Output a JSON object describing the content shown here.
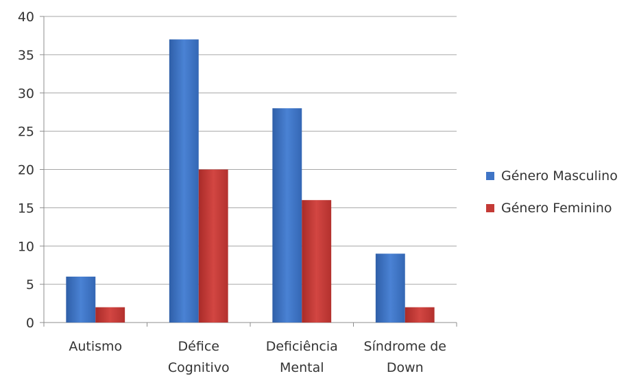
{
  "chart_data": {
    "type": "bar",
    "categories": [
      [
        "Autismo"
      ],
      [
        "Défice",
        "Cognitivo"
      ],
      [
        "Deficiência",
        "Mental"
      ],
      [
        "Síndrome de",
        "Down"
      ]
    ],
    "series": [
      {
        "name": "Género Masculino",
        "values": [
          6,
          37,
          28,
          9
        ],
        "color": "#3f74c6"
      },
      {
        "name": "Género Feminino",
        "values": [
          2,
          20,
          16,
          2
        ],
        "color": "#c43a36"
      }
    ],
    "ylim": [
      0,
      40
    ],
    "yticks": [
      0,
      5,
      10,
      15,
      20,
      25,
      30,
      35,
      40
    ],
    "grid": true,
    "legend_position": "right",
    "title": "",
    "xlabel": "",
    "ylabel": ""
  }
}
